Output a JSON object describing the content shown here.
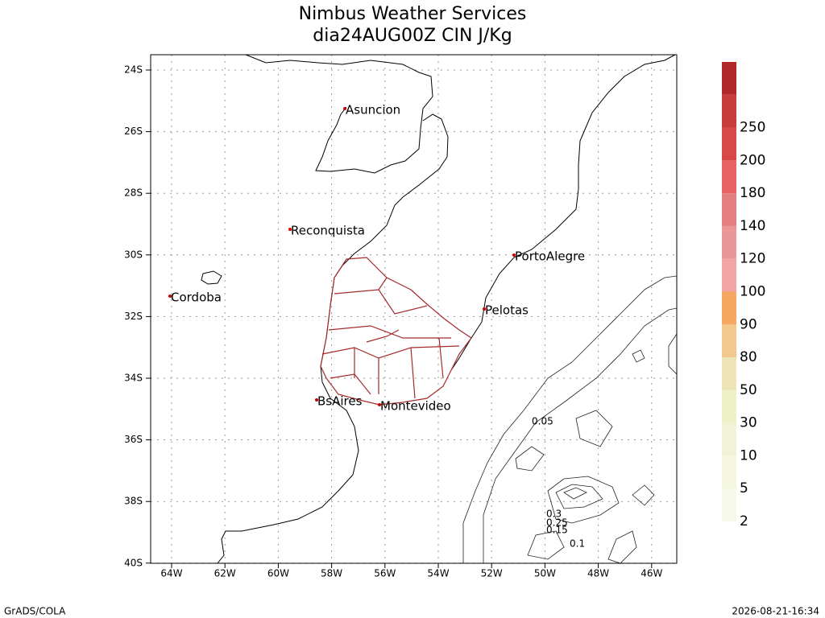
{
  "title": {
    "line1": "Nimbus Weather Services",
    "line2": "dia24AUG00Z CIN J/Kg"
  },
  "lat_labels": [
    "24S",
    "26S",
    "28S",
    "30S",
    "32S",
    "34S",
    "36S",
    "38S",
    "40S"
  ],
  "lon_labels": [
    "64W",
    "62W",
    "60W",
    "58W",
    "56W",
    "54W",
    "52W",
    "50W",
    "48W",
    "46W"
  ],
  "cities": [
    "Asuncion",
    "Reconquista",
    "Cordoba",
    "PortoAlegre",
    "Pelotas",
    "BsAires",
    "Montevideo"
  ],
  "contour_labels": [
    "0.05",
    "0.3",
    "0.25",
    "0.15",
    "0.1"
  ],
  "colorbar": {
    "labels": [
      "2",
      "5",
      "10",
      "30",
      "50",
      "80",
      "90",
      "100",
      "120",
      "140",
      "180",
      "200",
      "250"
    ],
    "colors": [
      "#f6f8e8",
      "#f4f6e0",
      "#f1f3d6",
      "#eef0c6",
      "#efe4b8",
      "#f2c88e",
      "#f6a862",
      "#f4a4a4",
      "#eb9797",
      "#e47f7f",
      "#e86464",
      "#d84848",
      "#c83c3c",
      "#b02828"
    ]
  },
  "footer": {
    "left": "GrADS/COLA",
    "right": "2026-08-21-16:34"
  }
}
